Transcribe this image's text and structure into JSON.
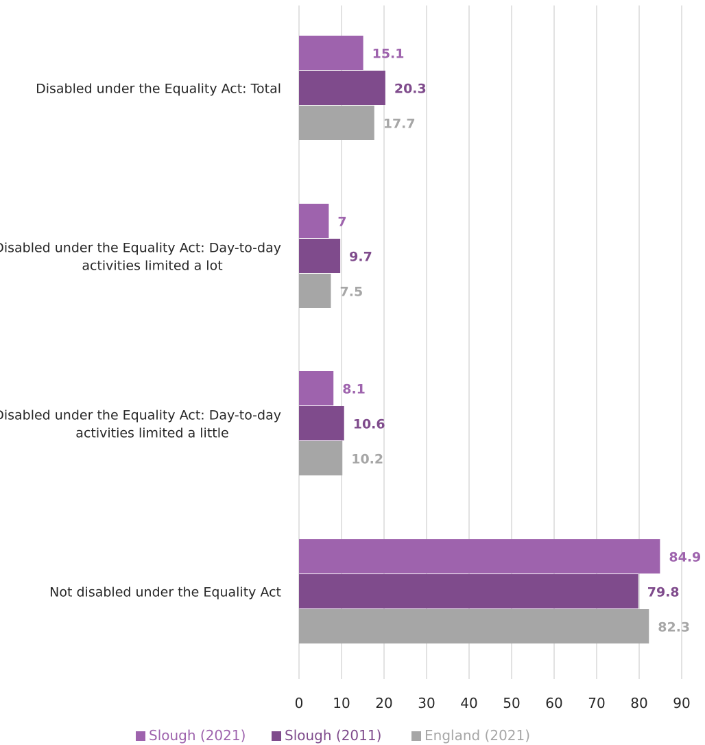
{
  "chart_data": {
    "type": "bar",
    "orientation": "horizontal",
    "title": "",
    "xlabel": "",
    "ylabel": "",
    "xlim": [
      0,
      90
    ],
    "x_ticks": [
      "0",
      "10",
      "20",
      "30",
      "40",
      "50",
      "60",
      "70",
      "80",
      "90"
    ],
    "grid": "vertical",
    "legend_position": "bottom",
    "categories": [
      [
        "Disabled under the Equality Act: Total"
      ],
      [
        "Disabled under the Equality Act: Day-to-day",
        "activities limited a lot"
      ],
      [
        "Disabled under the Equality Act: Day-to-day",
        "activities limited a little"
      ],
      [
        "Not disabled under the Equality Act"
      ]
    ],
    "series": [
      {
        "name": "Slough (2021)",
        "color": "#9e63ad",
        "values": [
          15.1,
          7,
          8.1,
          84.9
        ],
        "labels": [
          "15.1",
          "7",
          "8.1",
          "84.9"
        ]
      },
      {
        "name": "Slough (2011)",
        "color": "#7f4b8c",
        "values": [
          20.3,
          9.7,
          10.6,
          79.8
        ],
        "labels": [
          "20.3",
          "9.7",
          "10.6",
          "79.8"
        ]
      },
      {
        "name": "England (2021)",
        "color": "#a6a6a6",
        "values": [
          17.7,
          7.5,
          10.2,
          82.3
        ],
        "labels": [
          "17.7",
          "7.5",
          "10.2",
          "82.3"
        ]
      }
    ]
  }
}
